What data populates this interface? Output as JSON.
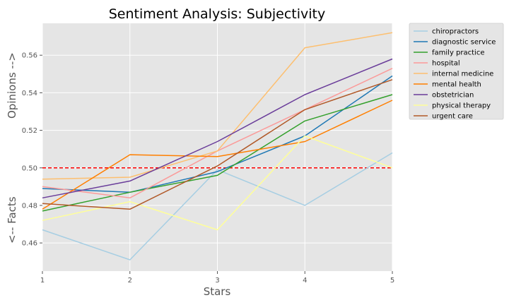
{
  "chart_data": {
    "type": "line",
    "title": "Sentiment Analysis: Subjectivity",
    "xlabel": "Stars",
    "ylabel_top": "Opinions -->",
    "ylabel_bottom": "<-- Facts",
    "x": [
      1,
      2,
      3,
      4,
      5
    ],
    "x_ticks": [
      "1",
      "2",
      "3",
      "4",
      "5"
    ],
    "xlim": [
      1,
      5
    ],
    "ylim": [
      0.445,
      0.577
    ],
    "y_ticks": [
      0.46,
      0.48,
      0.5,
      0.52,
      0.54,
      0.56
    ],
    "y_tick_labels": [
      "0.46",
      "0.48",
      "0.50",
      "0.52",
      "0.54",
      "0.56"
    ],
    "grid": true,
    "legend_position": "outside-top-right",
    "reference_line": {
      "y": 0.5,
      "color": "#ff0000",
      "style": "dashed"
    },
    "series": [
      {
        "name": "chiropractors",
        "color": "#a6cee3",
        "values": [
          0.467,
          0.451,
          0.499,
          0.48,
          0.508
        ]
      },
      {
        "name": "diagnostic service",
        "color": "#1f78b4",
        "values": [
          0.489,
          0.487,
          0.498,
          0.517,
          0.549
        ]
      },
      {
        "name": "family practice",
        "color": "#33a02c",
        "values": [
          0.477,
          0.487,
          0.496,
          0.525,
          0.539
        ]
      },
      {
        "name": "hospital",
        "color": "#fb9a99",
        "values": [
          0.49,
          0.484,
          0.509,
          0.531,
          0.553
        ]
      },
      {
        "name": "internal medicine",
        "color": "#fdbf6f",
        "values": [
          0.494,
          0.495,
          0.509,
          0.564,
          0.572
        ]
      },
      {
        "name": "mental health",
        "color": "#ff7f00",
        "values": [
          0.478,
          0.507,
          0.506,
          0.514,
          0.536
        ]
      },
      {
        "name": "obstetrician",
        "color": "#6a3d9a",
        "values": [
          0.484,
          0.493,
          0.514,
          0.539,
          0.558
        ]
      },
      {
        "name": "physical therapy",
        "color": "#ffff99",
        "values": [
          0.472,
          0.482,
          0.467,
          0.517,
          0.5
        ]
      },
      {
        "name": "urgent care",
        "color": "#b15928",
        "values": [
          0.481,
          0.478,
          0.501,
          0.531,
          0.547
        ]
      }
    ]
  }
}
